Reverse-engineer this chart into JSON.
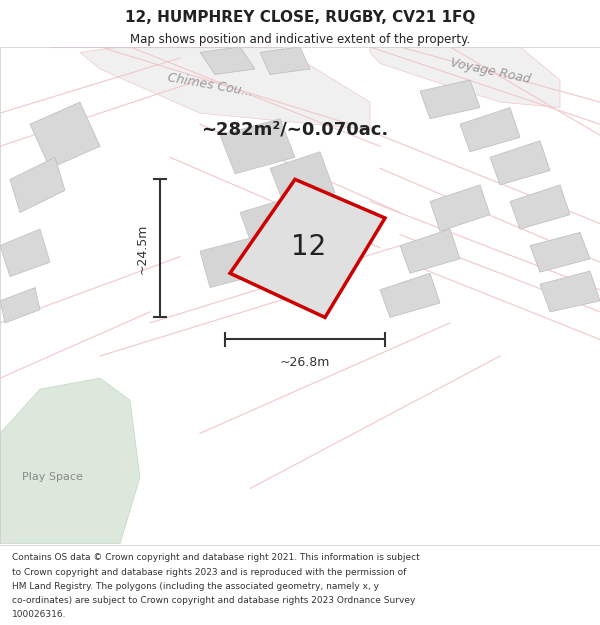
{
  "title_line1": "12, HUMPHREY CLOSE, RUGBY, CV21 1FQ",
  "title_line2": "Map shows position and indicative extent of the property.",
  "area_text": "~282m²/~0.070ac.",
  "dim_vertical": "~24.5m",
  "dim_horizontal": "~26.8m",
  "plot_label": "12",
  "play_space": "Play Space",
  "footer_lines": [
    "Contains OS data © Crown copyright and database right 2021. This information is subject",
    "to Crown copyright and database rights 2023 and is reproduced with the permission of",
    "HM Land Registry. The polygons (including the associated geometry, namely x, y",
    "co-ordinates) are subject to Crown copyright and database rights 2023 Ordnance Survey",
    "100026316."
  ],
  "map_bg": "#ffffff",
  "road_color": "#f0c8c8",
  "building_color": "#d8d8d8",
  "plot_edge": "#cc0000",
  "dim_color": "#333333",
  "text_color": "#222222"
}
